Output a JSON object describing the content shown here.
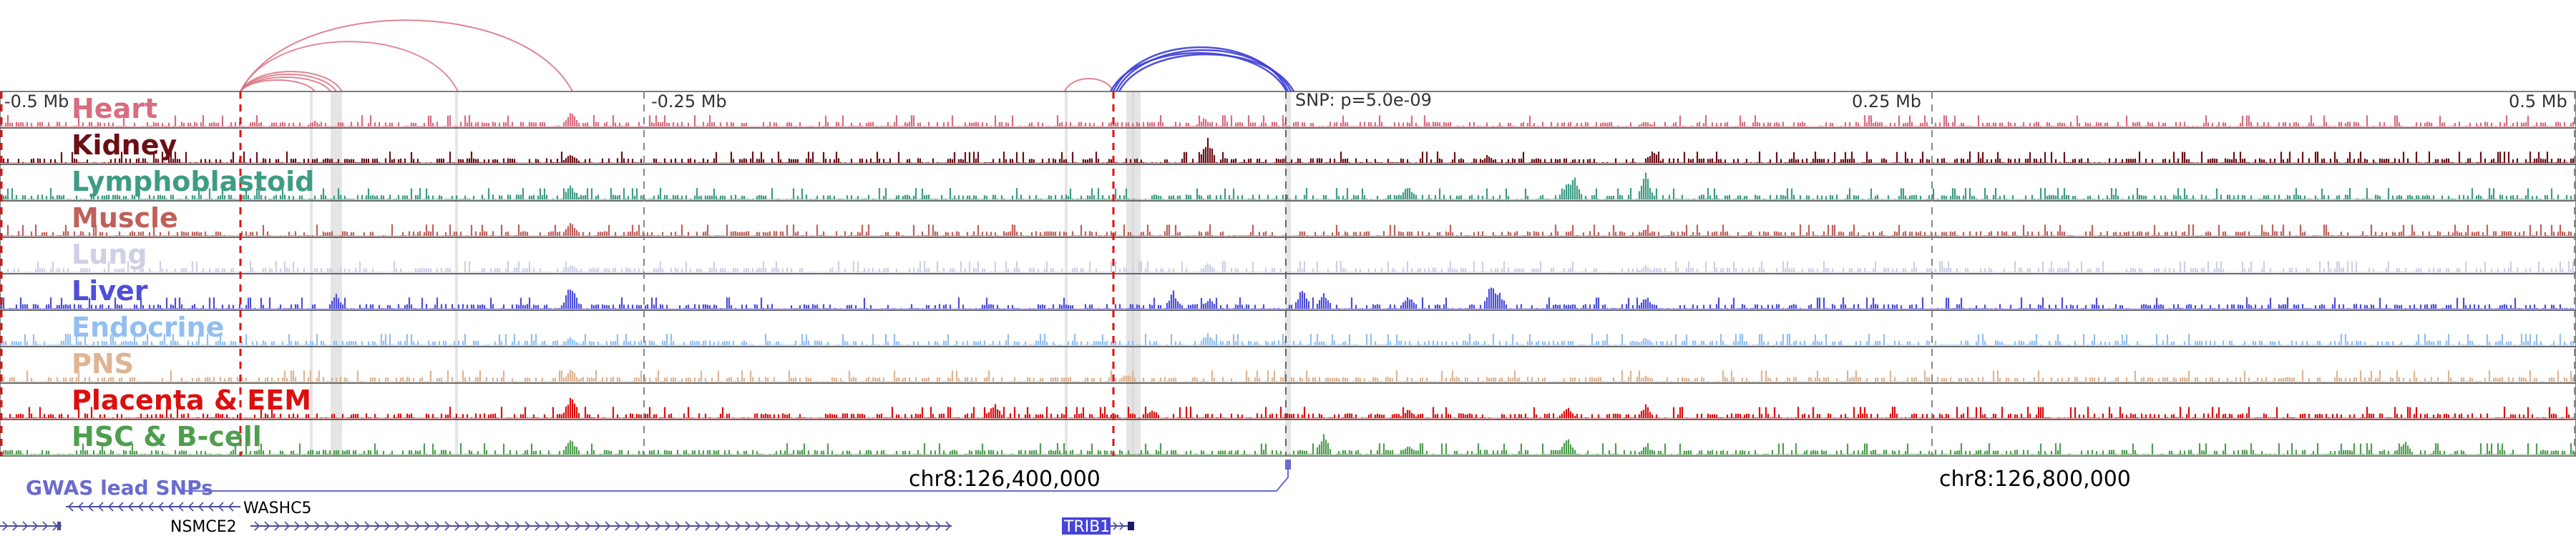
{
  "tracks": [
    {
      "label": "Heart",
      "color": "#d96c80"
    },
    {
      "label": "Kidney",
      "color": "#6b0f16"
    },
    {
      "label": "Lymphoblastoid",
      "color": "#3e9c84"
    },
    {
      "label": "Muscle",
      "color": "#c0605a"
    },
    {
      "label": "Lung",
      "color": "#cfcfe6"
    },
    {
      "label": "Liver",
      "color": "#4e4ed8"
    },
    {
      "label": "Endocrine",
      "color": "#92bff0"
    },
    {
      "label": "PNS",
      "color": "#deb493"
    },
    {
      "label": "Placenta & EEM",
      "color": "#dc0f0f"
    },
    {
      "label": "HSC & B-cell",
      "color": "#4f9e4f"
    }
  ],
  "scale_labels": [
    "-0.5 Mb",
    "-0.25 Mb",
    "0.25 Mb",
    "0.5 Mb"
  ],
  "snp_label": "SNP: p=5.0e-09",
  "gwas_label": "GWAS lead SNPs",
  "coordinates": [
    "chr8:126,400,000",
    "chr8:126,800,000"
  ],
  "genes": [
    {
      "name": "WASHC5",
      "strand": "-"
    },
    {
      "name": "NSMCE2",
      "strand": "+"
    },
    {
      "name": "TRIB1",
      "strand": "+"
    }
  ],
  "colors": {
    "loop_pink": "#d97080",
    "loop_blue": "#3d3dd6",
    "marker_red": "#e01010",
    "gwas": "#6a6ad0"
  }
}
